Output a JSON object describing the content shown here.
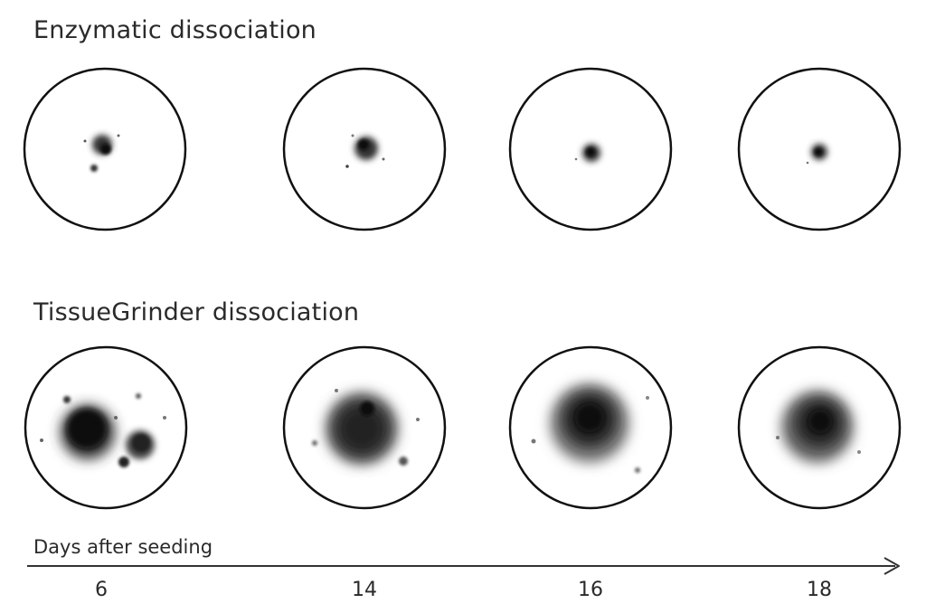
{
  "rows": [
    {
      "title": "Enzymatic dissociation"
    },
    {
      "title": "TissueGrinder dissociation"
    }
  ],
  "axis": {
    "label": "Days after seeding"
  },
  "days": [
    "6",
    "14",
    "16",
    "18"
  ],
  "colors": {
    "ink": "#111111",
    "text": "#2a2a2a",
    "background": "#ffffff"
  }
}
